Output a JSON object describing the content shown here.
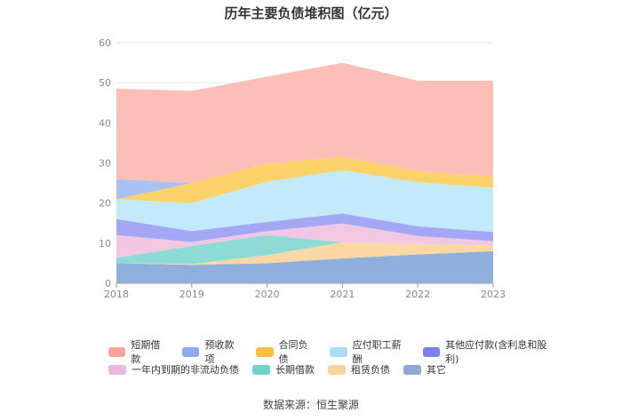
{
  "chart_data": {
    "type": "area",
    "title": "历年主要负债堆积图（亿元）",
    "x": [
      "2018",
      "2019",
      "2020",
      "2021",
      "2022",
      "2023"
    ],
    "ylim": [
      0,
      60
    ],
    "yticks": [
      0,
      10,
      20,
      30,
      40,
      50,
      60
    ],
    "grid": true,
    "legend_position": "bottom",
    "series": [
      {
        "name": "其它",
        "color": "#8fb0dc",
        "values": [
          5.0,
          4.6,
          5.0,
          6.2,
          7.2,
          8.0
        ]
      },
      {
        "name": "租赁负债",
        "color": "#fcd9a4",
        "values": [
          0.0,
          0.2,
          2.0,
          4.0,
          2.6,
          1.5
        ]
      },
      {
        "name": "长期借款",
        "color": "#8ddbd7",
        "values": [
          1.3,
          4.5,
          5.0,
          0.0,
          0.0,
          0.0
        ]
      },
      {
        "name": "一年内到期的非流动负债",
        "color": "#f1c7e2",
        "values": [
          5.7,
          1.0,
          1.0,
          4.7,
          2.0,
          1.0
        ]
      },
      {
        "name": "其他应付款(含利息和股利)",
        "color": "#a4a8f4",
        "values": [
          4.0,
          2.7,
          2.3,
          2.5,
          2.4,
          2.3
        ]
      },
      {
        "name": "应付职工薪酬",
        "color": "#c3eafa",
        "values": [
          5.0,
          7.0,
          10.0,
          10.8,
          11.0,
          11.0
        ]
      },
      {
        "name": "合同负债",
        "color": "#fcd36a",
        "values": [
          0.0,
          5.0,
          4.5,
          3.3,
          2.8,
          2.7
        ]
      },
      {
        "name": "预收款项",
        "color": "#a9c1f5",
        "values": [
          5.0,
          0.0,
          0.0,
          0.0,
          0.0,
          0.0
        ]
      },
      {
        "name": "短期借款",
        "color": "#fcbfb8",
        "values": [
          22.5,
          23.0,
          21.7,
          23.5,
          22.5,
          24.0
        ]
      }
    ],
    "legend_order": [
      "短期借款",
      "预收款项",
      "合同负债",
      "应付职工薪酬",
      "其他应付款(含利息和股利)",
      "一年内到期的非流动负债",
      "长期借款",
      "租赁负债",
      "其它"
    ],
    "legend_colors": {
      "短期借款": "#f8a59b",
      "预收款项": "#8eaaf6",
      "合同负债": "#fbc03f",
      "应付职工薪酬": "#a8def7",
      "其他应付款(含利息和股利)": "#7b7ff0",
      "一年内到期的非流动负债": "#e9b9dc",
      "长期借款": "#6fd2cc",
      "租赁负债": "#fbd49a",
      "其它": "#8da9d8"
    }
  },
  "source": "数据来源：恒生聚源"
}
